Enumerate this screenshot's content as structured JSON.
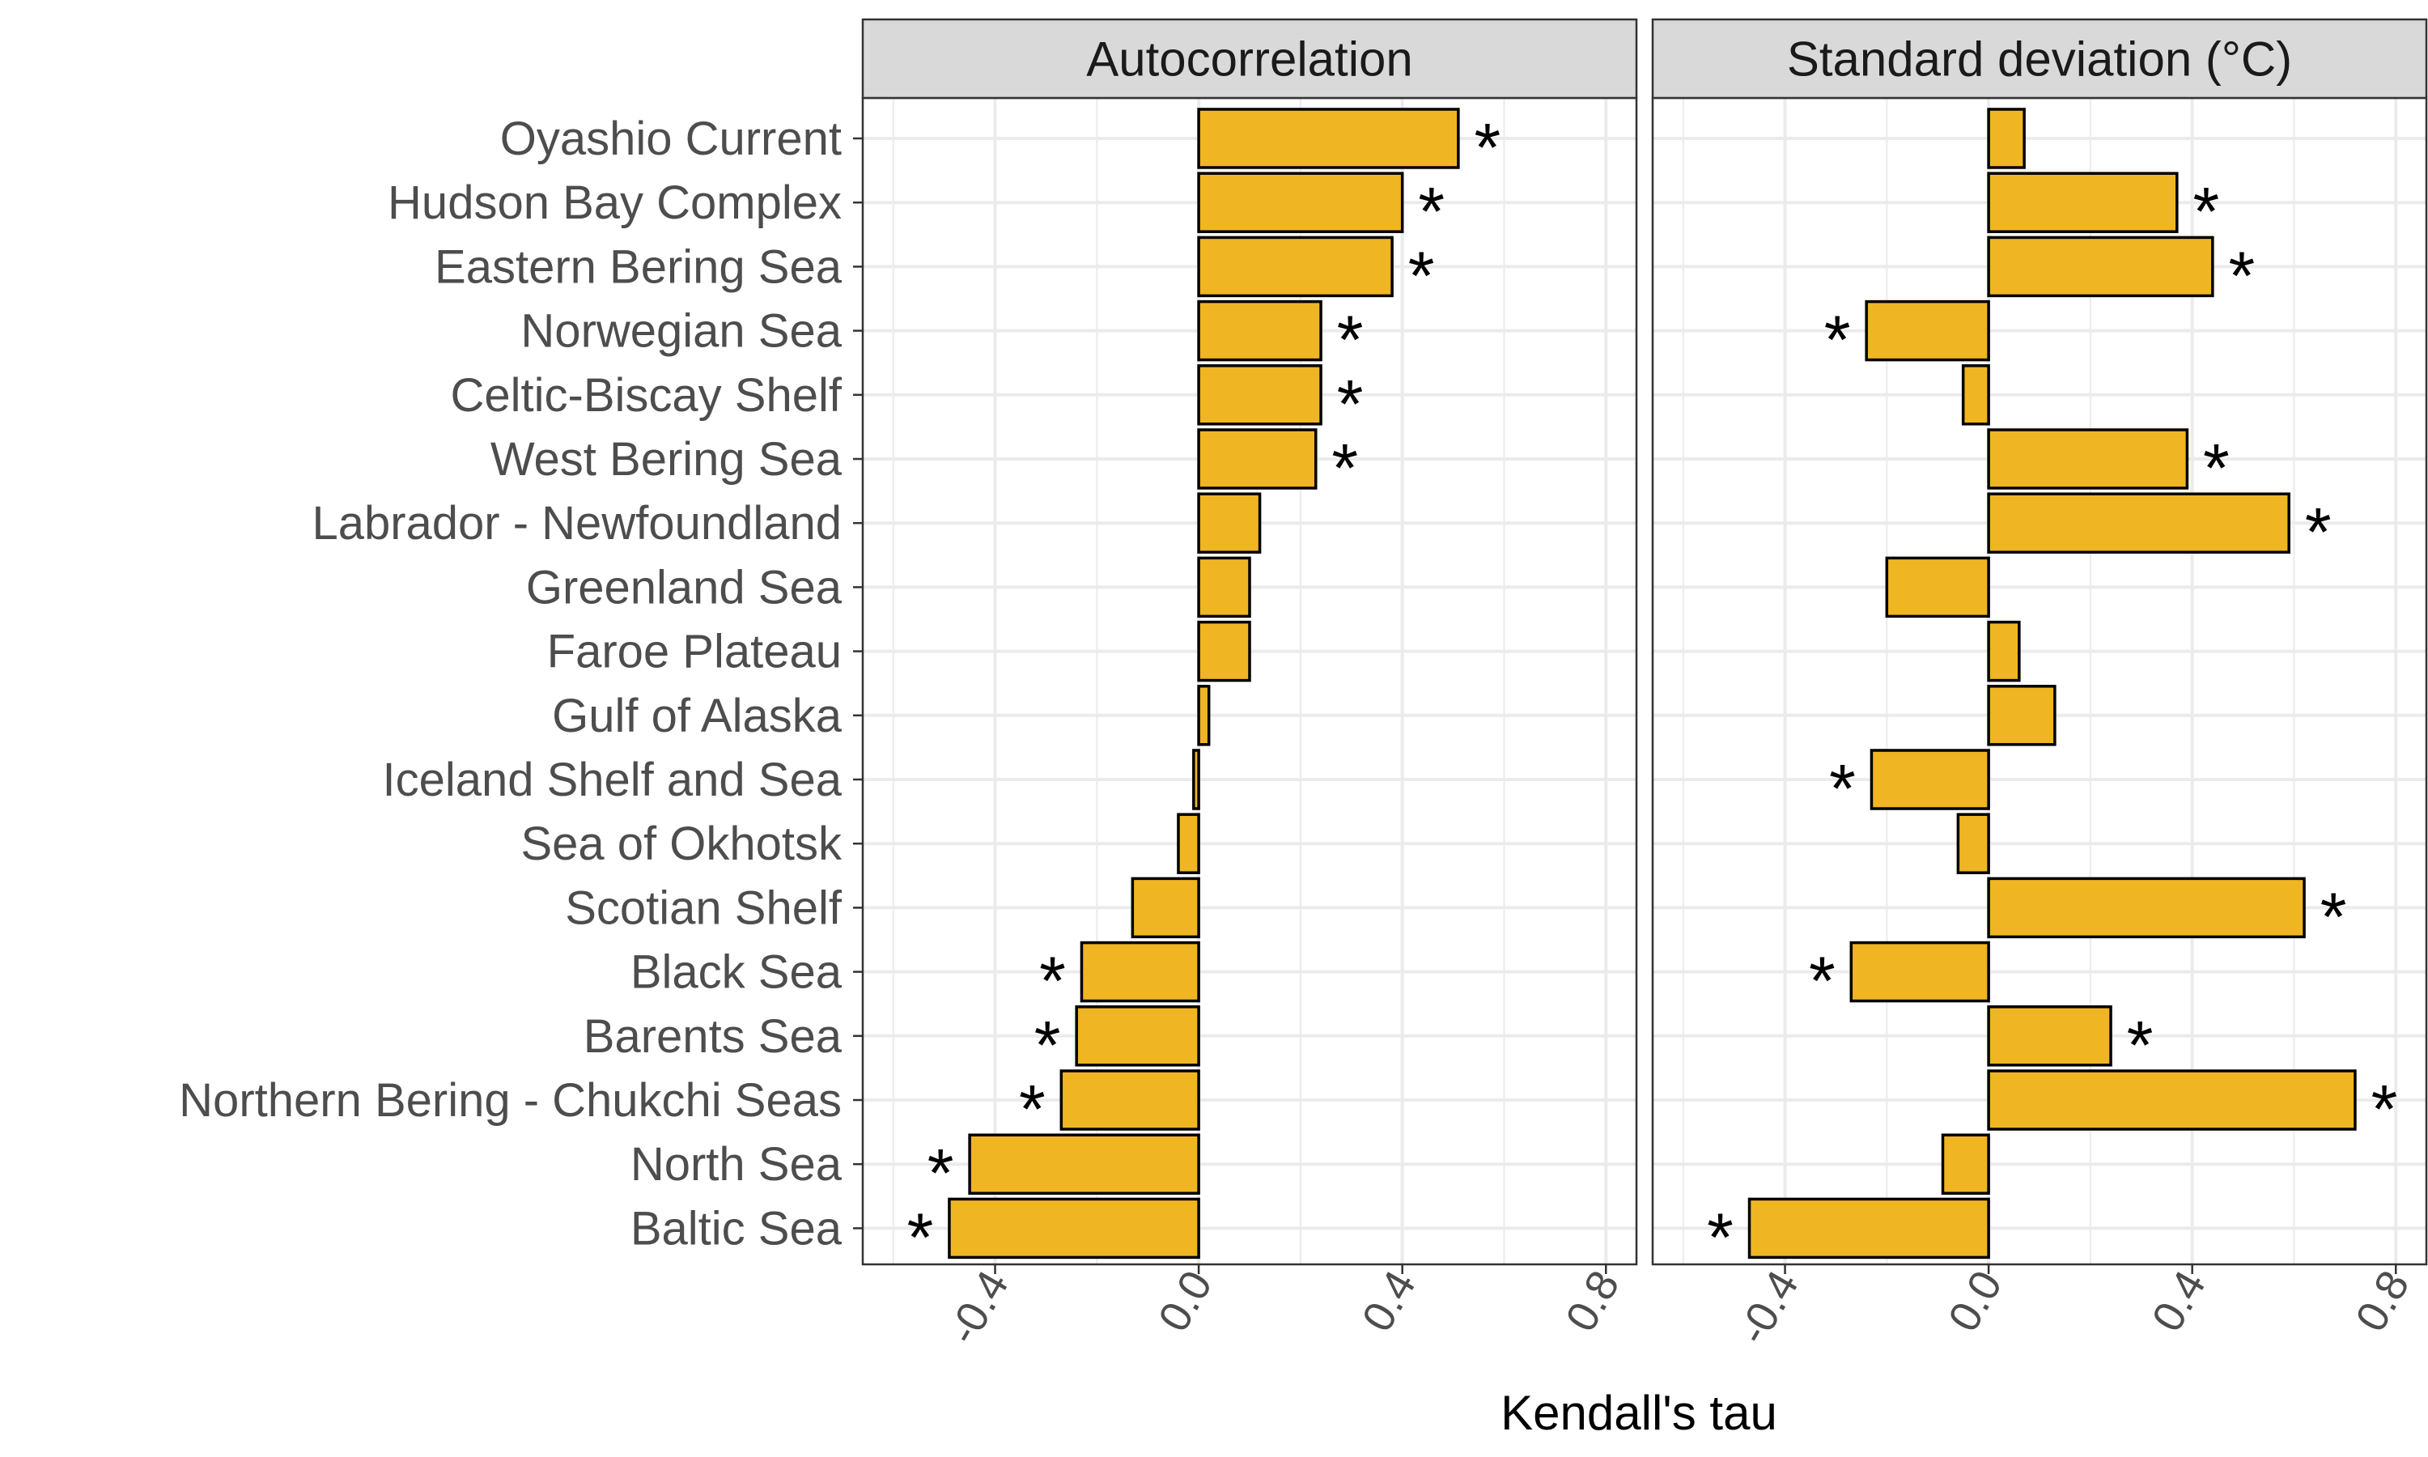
{
  "chart_data": {
    "type": "bar",
    "orientation": "horizontal",
    "categories": [
      "Oyashio Current",
      "Hudson Bay Complex",
      "Eastern Bering Sea",
      "Norwegian Sea",
      "Celtic-Biscay Shelf",
      "West Bering Sea",
      "Labrador - Newfoundland",
      "Greenland Sea",
      "Faroe Plateau",
      "Gulf of Alaska",
      "Iceland Shelf and Sea",
      "Sea of Okhotsk",
      "Scotian Shelf",
      "Black Sea",
      "Barents Sea",
      "Northern Bering - Chukchi Seas",
      "North Sea",
      "Baltic Sea"
    ],
    "panels": [
      {
        "title": "Autocorrelation",
        "values": [
          0.51,
          0.4,
          0.38,
          0.24,
          0.24,
          0.23,
          0.12,
          0.1,
          0.1,
          0.02,
          -0.01,
          -0.04,
          -0.13,
          -0.23,
          -0.24,
          -0.27,
          -0.45,
          -0.49
        ],
        "significant": [
          true,
          true,
          true,
          true,
          true,
          true,
          false,
          false,
          false,
          false,
          false,
          false,
          false,
          true,
          true,
          true,
          true,
          true
        ]
      },
      {
        "title": "Standard deviation (°C)",
        "values": [
          0.07,
          0.37,
          0.44,
          -0.24,
          -0.05,
          0.39,
          0.59,
          -0.2,
          0.06,
          0.13,
          -0.23,
          -0.06,
          0.62,
          -0.27,
          0.24,
          0.72,
          -0.09,
          -0.47
        ],
        "significant": [
          false,
          true,
          true,
          true,
          false,
          true,
          true,
          false,
          false,
          false,
          true,
          false,
          true,
          true,
          true,
          true,
          false,
          true
        ]
      }
    ],
    "xlabel": "Kendall's tau",
    "ylabel": "",
    "xlim": [
      -0.66,
      0.86
    ],
    "x_ticks": [
      -0.4,
      0.0,
      0.4,
      0.8
    ],
    "x_tick_labels": [
      "-0.4",
      "0.0",
      "0.4",
      "0.8"
    ],
    "significance_marker": "*",
    "bar_color": "#EFB522",
    "bar_outline": "#000000",
    "grid": true,
    "legend": "none"
  }
}
